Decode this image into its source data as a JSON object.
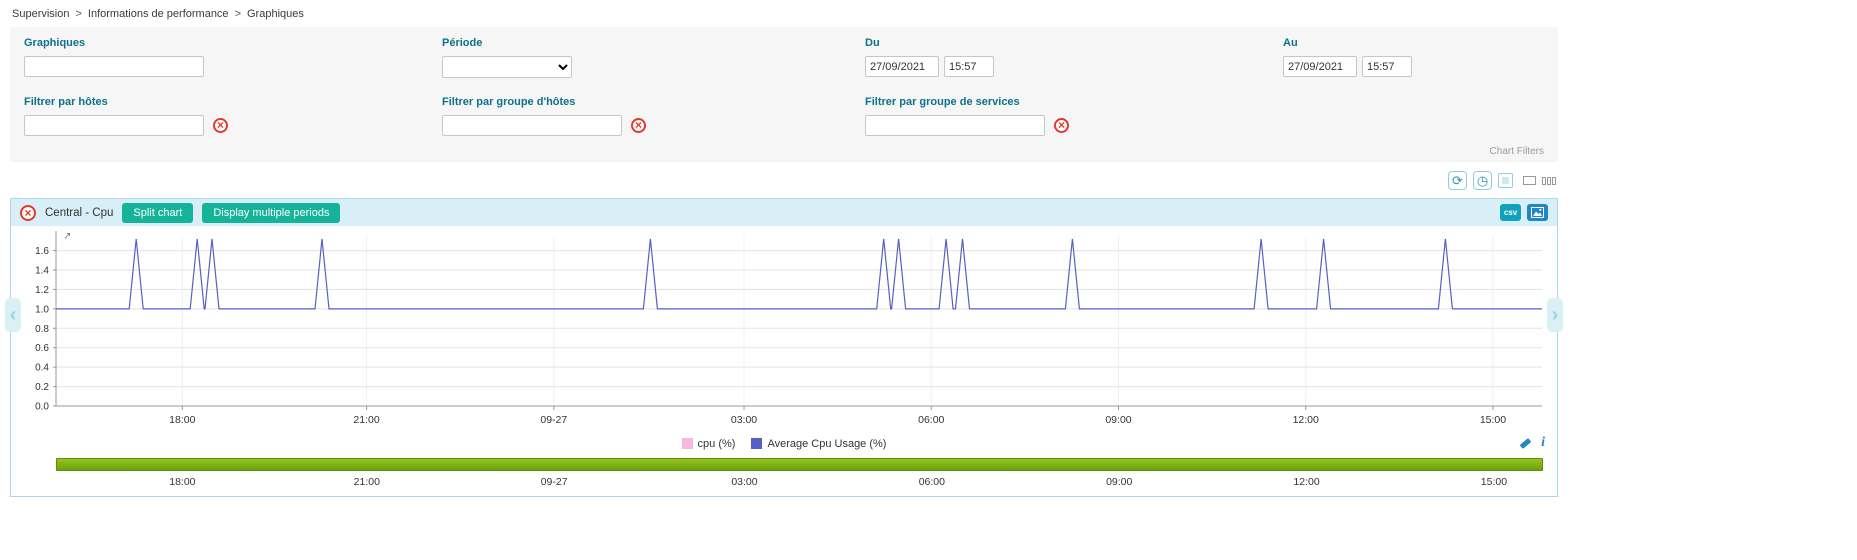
{
  "breadcrumb": {
    "separator": ">",
    "items": [
      "Supervision",
      "Informations de performance",
      "Graphiques"
    ]
  },
  "filters": {
    "graphs": {
      "label": "Graphiques",
      "value": ""
    },
    "period": {
      "label": "Période",
      "selected": ""
    },
    "from": {
      "label": "Du",
      "date": "27/09/2021",
      "time": "15:57"
    },
    "to": {
      "label": "Au",
      "date": "27/09/2021",
      "time": "15:57"
    },
    "host": {
      "label": "Filtrer par hôtes",
      "value": "",
      "clear_icon": "×"
    },
    "hostgroup": {
      "label": "Filtrer par groupe d'hôtes",
      "value": "",
      "clear_icon": "×"
    },
    "servicegroup": {
      "label": "Filtrer par groupe de services",
      "value": "",
      "clear_icon": "×"
    },
    "chart_filters_label": "Chart Filters"
  },
  "toolbar": {
    "refresh_icon": "⟳",
    "clock_icon": "◷"
  },
  "chart_panel": {
    "close_icon": "×",
    "title": "Central - Cpu",
    "split_chart_label": "Split chart",
    "multiple_periods_label": "Display multiple periods",
    "csv_label": "csv",
    "pan_left_icon": "‹",
    "pan_right_icon": "›",
    "zoom_hint_icon": "↗",
    "info_icon": "i"
  },
  "colors": {
    "label_teal": "#0d7189",
    "button_teal": "#16b39b",
    "header_blue": "#d8eff7",
    "line_blue": "#5560c4",
    "cpu_pink": "#f7b8e0",
    "timeline_green": "#7db110",
    "clear_red": "#e2382b"
  },
  "chart_data": {
    "type": "line",
    "title": "Central - Cpu",
    "ylim": [
      0,
      1.75
    ],
    "yticks": [
      0,
      0.2,
      0.4,
      0.6,
      0.8,
      1.0,
      1.2,
      1.4,
      1.6
    ],
    "xticks": [
      "18:00",
      "21:00",
      "09-27",
      "03:00",
      "06:00",
      "09:00",
      "12:00",
      "15:00"
    ],
    "xtick_positions": [
      0.085,
      0.209,
      0.335,
      0.463,
      0.589,
      0.715,
      0.841,
      0.967
    ],
    "x_range": [
      "26/09/2021 15:57",
      "27/09/2021 15:57"
    ],
    "grid": true,
    "legend_position": "bottom",
    "series": [
      {
        "name": "cpu (%)",
        "color": "#f7b8e0",
        "style": "hidden"
      },
      {
        "name": "Average Cpu Usage (%)",
        "color": "#5560c4",
        "baseline": 1.0,
        "spike_value": 1.72,
        "spike_positions": [
          0.054,
          0.095,
          0.105,
          0.179,
          0.4,
          0.557,
          0.567,
          0.599,
          0.61,
          0.684,
          0.811,
          0.853,
          0.935
        ],
        "spike_times_approx": [
          "17:15",
          "18:14",
          "18:29",
          "20:14",
          "01:33",
          "05:15",
          "05:29",
          "06:14",
          "06:31",
          "08:16",
          "11:18",
          "12:17",
          "14:14"
        ]
      }
    ]
  }
}
